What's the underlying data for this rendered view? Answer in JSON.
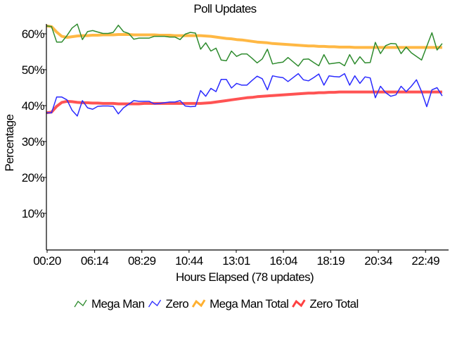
{
  "chart_data": {
    "type": "line",
    "title": "Poll Updates",
    "xlabel": "Hours Elapsed (78 updates)",
    "ylabel": "Percentage",
    "ylim": [
      0,
      62.5
    ],
    "yticks": [
      10,
      20,
      30,
      40,
      50,
      60
    ],
    "ytick_labels": [
      "10%",
      "20%",
      "30%",
      "40%",
      "50%",
      "60%"
    ],
    "xtick_index": [
      0,
      9.1,
      18.2,
      27.3,
      36.4,
      45.5,
      54.6,
      63.8,
      72.9
    ],
    "xtick_labels": [
      "00:20",
      "06:14",
      "08:29",
      "10:44",
      "13:01",
      "16:04",
      "18:19",
      "20:34",
      "22:49"
    ],
    "legend_position": "bottom",
    "series": [
      {
        "name": "Mega Man",
        "color": "#2e8b2e",
        "width": 1.5,
        "values": [
          62.2,
          62.0,
          57.7,
          57.7,
          59.5,
          61.6,
          62.7,
          58.4,
          60.6,
          60.9,
          60.5,
          60.1,
          60.1,
          60.4,
          62.4,
          60.6,
          60.1,
          58.5,
          58.8,
          58.8,
          58.8,
          59.3,
          59.3,
          59.3,
          59.1,
          59.1,
          58.4,
          59.9,
          60.4,
          60.2,
          55.7,
          57.5,
          55.2,
          56.0,
          52.7,
          52.5,
          55.2,
          53.7,
          54.4,
          54.4,
          53.2,
          51.9,
          53.0,
          55.7,
          51.6,
          51.9,
          52.1,
          53.4,
          52.2,
          51.0,
          52.9,
          53.0,
          52.0,
          51.1,
          54.2,
          51.6,
          51.8,
          52.0,
          51.1,
          54.2,
          51.6,
          53.6,
          51.9,
          52.0,
          57.6,
          54.5,
          56.7,
          57.3,
          57.2,
          54.5,
          56.3,
          54.7,
          53.7,
          52.7,
          56.5,
          60.3,
          55.5,
          57.3
        ]
      },
      {
        "name": "Zero",
        "color": "#2a2aff",
        "width": 1.5,
        "values": [
          38.0,
          38.0,
          42.4,
          42.4,
          41.6,
          38.7,
          37.1,
          41.4,
          39.4,
          39.0,
          39.8,
          39.9,
          39.9,
          39.8,
          37.7,
          39.4,
          40.4,
          41.4,
          41.2,
          41.2,
          41.2,
          40.5,
          40.6,
          40.8,
          41.0,
          41.0,
          41.4,
          39.9,
          39.7,
          39.8,
          44.2,
          42.6,
          44.8,
          43.9,
          47.3,
          47.3,
          44.9,
          46.2,
          45.7,
          45.7,
          47.0,
          48.2,
          47.5,
          44.4,
          48.3,
          48.0,
          47.8,
          46.7,
          47.8,
          48.9,
          47.2,
          46.9,
          47.8,
          48.8,
          45.7,
          48.3,
          48.1,
          48.0,
          48.9,
          45.7,
          48.3,
          46.2,
          48.0,
          47.7,
          42.2,
          45.4,
          43.6,
          42.6,
          43.0,
          45.4,
          43.9,
          45.4,
          47.2,
          43.9,
          39.7,
          44.4,
          45.0,
          42.7
        ]
      },
      {
        "name": "Mega Man Total",
        "color": "#ffb030",
        "width": 4,
        "values": [
          62.2,
          62.0,
          60.5,
          59.3,
          59.0,
          59.2,
          59.4,
          59.5,
          59.5,
          59.6,
          59.6,
          59.7,
          59.7,
          59.7,
          59.8,
          59.8,
          59.8,
          59.7,
          59.7,
          59.7,
          59.7,
          59.7,
          59.6,
          59.6,
          59.6,
          59.5,
          59.5,
          59.5,
          59.5,
          59.5,
          59.5,
          59.4,
          59.3,
          59.1,
          58.9,
          58.7,
          58.6,
          58.4,
          58.3,
          58.1,
          57.9,
          57.7,
          57.6,
          57.5,
          57.3,
          57.2,
          57.1,
          57.0,
          56.9,
          56.8,
          56.7,
          56.6,
          56.6,
          56.5,
          56.5,
          56.4,
          56.4,
          56.3,
          56.3,
          56.3,
          56.2,
          56.2,
          56.2,
          56.2,
          56.2,
          56.2,
          56.2,
          56.2,
          56.2,
          56.2,
          56.2,
          56.2,
          56.2,
          56.2,
          56.2,
          56.2,
          56.2,
          56.2
        ]
      },
      {
        "name": "Zero Total",
        "color": "#ff4040",
        "width": 4,
        "values": [
          38.0,
          38.2,
          39.8,
          40.9,
          41.2,
          41.1,
          40.9,
          40.8,
          40.8,
          40.7,
          40.7,
          40.6,
          40.6,
          40.6,
          40.5,
          40.5,
          40.5,
          40.5,
          40.5,
          40.6,
          40.6,
          40.6,
          40.6,
          40.6,
          40.6,
          40.6,
          40.6,
          40.6,
          40.6,
          40.6,
          40.6,
          40.7,
          40.8,
          41.0,
          41.2,
          41.4,
          41.6,
          41.8,
          42.0,
          42.2,
          42.3,
          42.5,
          42.6,
          42.7,
          42.8,
          42.9,
          43.0,
          43.1,
          43.2,
          43.3,
          43.4,
          43.5,
          43.5,
          43.6,
          43.6,
          43.7,
          43.7,
          43.8,
          43.8,
          43.8,
          43.8,
          43.8,
          43.8,
          43.8,
          43.8,
          43.8,
          43.8,
          43.8,
          43.8,
          43.8,
          43.8,
          43.8,
          43.8,
          43.8,
          43.8,
          43.8,
          43.8,
          43.8
        ]
      }
    ]
  }
}
